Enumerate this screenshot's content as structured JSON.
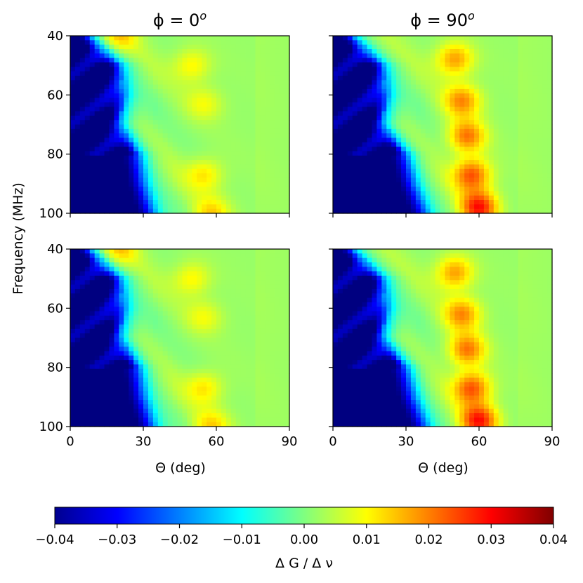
{
  "chart_data": {
    "type": "heatmap",
    "panels": [
      {
        "row": 0,
        "col": 0,
        "title_lead": "ϕ = 0",
        "title_sup": "o",
        "variant": "phi0"
      },
      {
        "row": 0,
        "col": 1,
        "title_lead": "ϕ = 90",
        "title_sup": "o",
        "variant": "phi90"
      },
      {
        "row": 1,
        "col": 0,
        "title_lead": "",
        "title_sup": "",
        "variant": "phi0"
      },
      {
        "row": 1,
        "col": 1,
        "title_lead": "",
        "title_sup": "",
        "variant": "phi90"
      }
    ],
    "xlabel": "Θ (deg)",
    "ylabel": "Frequency (MHz)",
    "xlim": [
      0,
      90
    ],
    "ylim": [
      100,
      40
    ],
    "xticks": [
      0,
      30,
      60,
      90
    ],
    "xtick_labels": [
      "0",
      "30",
      "60",
      "90"
    ],
    "yticks": [
      40,
      60,
      80,
      100
    ],
    "ytick_labels": [
      "40",
      "60",
      "80",
      "100"
    ],
    "colorbar": {
      "label": "Δ G / Δ ν",
      "min": -0.04,
      "max": 0.04,
      "ticks": [
        -0.04,
        -0.03,
        -0.02,
        -0.01,
        0.0,
        0.01,
        0.02,
        0.03,
        0.04
      ],
      "tick_labels": [
        "−0.04",
        "−0.03",
        "−0.02",
        "−0.01",
        "0.00",
        "0.01",
        "0.02",
        "0.03",
        "0.04"
      ],
      "colormap": "jet",
      "orientation": "horizontal"
    },
    "features": {
      "phi0": {
        "low_region_edge_theta": [
          [
            40,
            7
          ],
          [
            50,
            20
          ],
          [
            60,
            22
          ],
          [
            70,
            20
          ],
          [
            80,
            28
          ],
          [
            90,
            30
          ],
          [
            100,
            34
          ]
        ],
        "hot_spots": [
          {
            "freq": 40,
            "theta": 20,
            "value": 0.011
          },
          {
            "freq": 50,
            "theta": 50,
            "value": 0.009
          },
          {
            "freq": 63,
            "theta": 55,
            "value": 0.007
          },
          {
            "freq": 87,
            "theta": 55,
            "value": 0.01
          },
          {
            "freq": 100,
            "theta": 58,
            "value": 0.011
          }
        ]
      },
      "phi90": {
        "low_region_edge_theta": [
          [
            40,
            7
          ],
          [
            50,
            20
          ],
          [
            60,
            22
          ],
          [
            70,
            20
          ],
          [
            80,
            30
          ],
          [
            90,
            33
          ],
          [
            100,
            38
          ]
        ],
        "hot_spots": [
          {
            "freq": 48,
            "theta": 50,
            "value": 0.016
          },
          {
            "freq": 62,
            "theta": 53,
            "value": 0.017
          },
          {
            "freq": 74,
            "theta": 55,
            "value": 0.019
          },
          {
            "freq": 87,
            "theta": 57,
            "value": 0.022
          },
          {
            "freq": 98,
            "theta": 60,
            "value": 0.026
          }
        ]
      }
    }
  }
}
